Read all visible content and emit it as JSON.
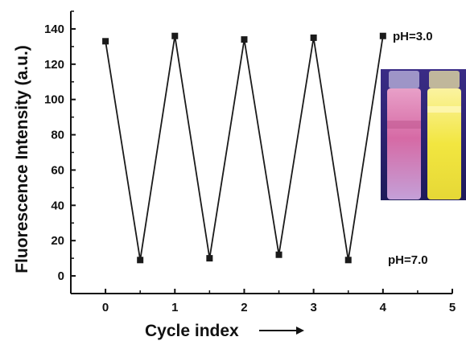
{
  "chart_data": {
    "type": "line",
    "xlabel": "Cycle index",
    "ylabel": "Fluorescence Intensity (a.u.)",
    "xlim": [
      -0.5,
      5
    ],
    "ylim": [
      -10,
      150
    ],
    "x_ticks": [
      0,
      1,
      2,
      3,
      4,
      5
    ],
    "y_ticks": [
      0,
      20,
      40,
      60,
      80,
      100,
      120,
      140
    ],
    "grid": false,
    "series": [
      {
        "marker": "square",
        "x": [
          0,
          0.5,
          1,
          1.5,
          2,
          2.5,
          3,
          3.5,
          4
        ],
        "y": [
          133,
          9,
          136,
          10,
          134,
          12,
          135,
          9,
          136
        ]
      }
    ],
    "annotations": [
      {
        "text": "pH=3.0"
      },
      {
        "text": "pH=7.0"
      }
    ],
    "inset": {
      "type": "photo",
      "content": "two vials under UV light: left vial pink/magenta, right vial bright yellow"
    },
    "colors": {
      "line": "#1a1a1a",
      "marker": "#1a1a1a",
      "vial_left": "#d0508a",
      "vial_right": "#f2e640",
      "inset_background": "#2a1e6e"
    }
  }
}
